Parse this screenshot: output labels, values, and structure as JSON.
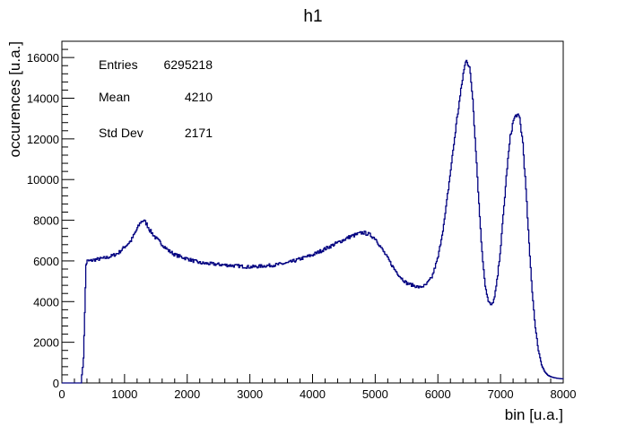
{
  "chart_data": {
    "type": "line",
    "title": "h1",
    "xlabel": "bin [u.a.]",
    "ylabel": "occurences [u.a.]",
    "xlim": [
      0,
      8000
    ],
    "ylim": [
      0,
      16800
    ],
    "xticks": [
      "0",
      "1000",
      "2000",
      "3000",
      "4000",
      "5000",
      "6000",
      "7000",
      "8000"
    ],
    "yticks": [
      "0",
      "2000",
      "4000",
      "6000",
      "8000",
      "10000",
      "12000",
      "14000",
      "16000"
    ],
    "grid": false,
    "line_color": "#000080",
    "stats": [
      {
        "label": "Entries",
        "value": "6295218"
      },
      {
        "label": "Mean",
        "value": "4210"
      },
      {
        "label": "Std Dev",
        "value": "2171"
      }
    ],
    "x": [
      0,
      300,
      340,
      360,
      380,
      400,
      450,
      500,
      600,
      700,
      800,
      900,
      1000,
      1100,
      1200,
      1250,
      1300,
      1350,
      1400,
      1500,
      1600,
      1700,
      1800,
      1900,
      2000,
      2200,
      2400,
      2600,
      2800,
      3000,
      3200,
      3400,
      3600,
      3800,
      4000,
      4200,
      4400,
      4600,
      4800,
      4900,
      5000,
      5100,
      5200,
      5300,
      5400,
      5500,
      5600,
      5700,
      5800,
      5900,
      6000,
      6100,
      6200,
      6300,
      6400,
      6450,
      6500,
      6550,
      6600,
      6650,
      6700,
      6750,
      6800,
      6850,
      6900,
      6950,
      7000,
      7050,
      7100,
      7150,
      7200,
      7250,
      7300,
      7350,
      7400,
      7450,
      7500,
      7550,
      7600,
      7650,
      7700,
      7750,
      7800,
      7850,
      7900,
      7950,
      8000
    ],
    "y": [
      0,
      0,
      1200,
      3500,
      5800,
      6000,
      6000,
      6050,
      6100,
      6150,
      6250,
      6400,
      6700,
      7000,
      7600,
      7900,
      8000,
      7800,
      7500,
      7100,
      6800,
      6500,
      6300,
      6200,
      6100,
      5900,
      5850,
      5800,
      5750,
      5700,
      5750,
      5800,
      5900,
      6100,
      6300,
      6600,
      6900,
      7200,
      7400,
      7300,
      7100,
      6600,
      6100,
      5600,
      5200,
      4900,
      4800,
      4700,
      4800,
      5200,
      6200,
      8000,
      10500,
      13000,
      15200,
      15950,
      15500,
      14000,
      11500,
      8800,
      6400,
      4800,
      4000,
      3800,
      4200,
      5300,
      6800,
      8700,
      10600,
      12100,
      12900,
      13200,
      13000,
      11800,
      9500,
      6800,
      4500,
      2700,
      1600,
      900,
      550,
      380,
      300,
      260,
      230,
      210,
      200
    ]
  }
}
